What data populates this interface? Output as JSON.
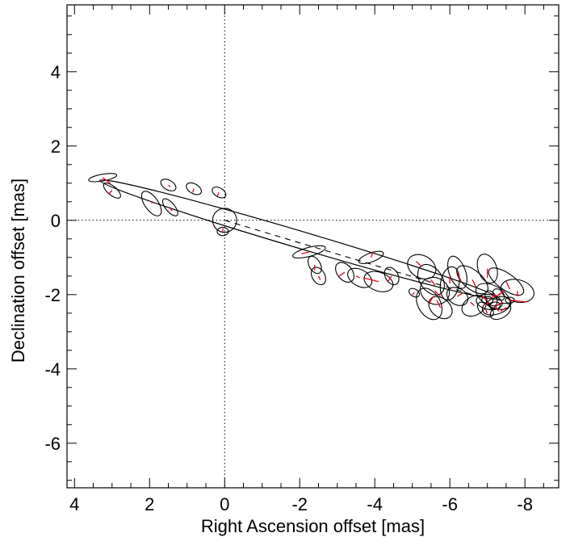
{
  "chart_data": {
    "type": "scatter",
    "title": "",
    "xlabel": "Right Ascension offset [mas]",
    "ylabel": "Declination offset [mas]",
    "xlim": [
      4.2,
      -8.9
    ],
    "ylim": [
      -7.2,
      5.8
    ],
    "x_reversed": true,
    "x_ticks": [
      4,
      2,
      0,
      -2,
      -4,
      -6,
      -8
    ],
    "x_tick_labels": [
      "4",
      "2",
      "0",
      "-2",
      "-4",
      "-6",
      "-8"
    ],
    "y_ticks": [
      4,
      2,
      0,
      -2,
      -4,
      -6
    ],
    "y_tick_labels": [
      "4",
      "2",
      "0",
      "-2",
      "-4",
      "-6"
    ],
    "grid": false,
    "origin_crosshair": "dotted",
    "colors": {
      "ellipse": "#000000",
      "residual": "#e8001c"
    },
    "orbit": {
      "center": [
        -2.0,
        -0.52
      ],
      "semi_major": 5.55,
      "semi_minor": 0.23,
      "angle_deg": -16.5
    },
    "line_of_nodes": {
      "from": [
        0.0,
        0.0
      ],
      "to": [
        -7.0,
        -2.12
      ],
      "style": "dashed"
    },
    "central_circle": {
      "x": 0.0,
      "y": 0.0,
      "r": 0.32
    },
    "measurements": [
      {
        "x": 3.25,
        "y": 1.15,
        "a": 0.38,
        "b": 0.09,
        "angle": 10,
        "rx": 3.05,
        "ry": 1.0
      },
      {
        "x": 3.0,
        "y": 0.8,
        "a": 0.28,
        "b": 0.12,
        "angle": -40,
        "rx": 3.1,
        "ry": 0.7
      },
      {
        "x": 1.95,
        "y": 0.45,
        "a": 0.38,
        "b": 0.18,
        "angle": -55,
        "rx": 1.9,
        "ry": 0.5
      },
      {
        "x": 1.5,
        "y": 0.95,
        "a": 0.22,
        "b": 0.13,
        "angle": -30,
        "rx": 1.45,
        "ry": 0.9
      },
      {
        "x": 1.45,
        "y": 0.35,
        "a": 0.28,
        "b": 0.12,
        "angle": -50,
        "rx": 1.4,
        "ry": 0.25
      },
      {
        "x": 0.82,
        "y": 0.85,
        "a": 0.22,
        "b": 0.13,
        "angle": -30,
        "rx": 0.85,
        "ry": 0.75
      },
      {
        "x": 0.15,
        "y": 0.75,
        "a": 0.2,
        "b": 0.12,
        "angle": -30,
        "rx": 0.2,
        "ry": 0.65
      },
      {
        "x": 0.05,
        "y": -0.3,
        "a": 0.15,
        "b": 0.11,
        "angle": 0,
        "rx": 0.05,
        "ry": -0.22
      },
      {
        "x": -2.25,
        "y": -0.85,
        "a": 0.45,
        "b": 0.12,
        "angle": 15,
        "rx": -2.05,
        "ry": -0.9
      },
      {
        "x": -2.4,
        "y": -1.2,
        "a": 0.25,
        "b": 0.15,
        "angle": -60,
        "rx": -2.4,
        "ry": -1.35
      },
      {
        "x": -2.5,
        "y": -1.5,
        "a": 0.25,
        "b": 0.17,
        "angle": -60,
        "rx": -2.55,
        "ry": -1.6
      },
      {
        "x": -3.2,
        "y": -1.4,
        "a": 0.3,
        "b": 0.2,
        "angle": -50,
        "rx": -3.05,
        "ry": -1.5
      },
      {
        "x": -3.6,
        "y": -1.55,
        "a": 0.35,
        "b": 0.22,
        "angle": -30,
        "rx": -3.5,
        "ry": -1.5
      },
      {
        "x": -3.9,
        "y": -1.0,
        "a": 0.35,
        "b": 0.12,
        "angle": 20,
        "rx": -3.95,
        "ry": -0.85
      },
      {
        "x": -4.1,
        "y": -1.65,
        "a": 0.4,
        "b": 0.25,
        "angle": -20,
        "rx": -3.7,
        "ry": -1.55
      },
      {
        "x": -4.45,
        "y": -1.5,
        "a": 0.25,
        "b": 0.17,
        "angle": -60,
        "rx": -4.35,
        "ry": -1.65
      },
      {
        "x": -5.25,
        "y": -1.25,
        "a": 0.4,
        "b": 0.3,
        "angle": -30,
        "rx": -5.1,
        "ry": -1.1
      },
      {
        "x": -5.05,
        "y": -1.95,
        "a": 0.15,
        "b": 0.1,
        "angle": -30,
        "rx": -5.0,
        "ry": -2.0
      },
      {
        "x": -5.5,
        "y": -1.6,
        "a": 0.45,
        "b": 0.3,
        "angle": -55,
        "rx": -5.6,
        "ry": -1.75
      },
      {
        "x": -5.6,
        "y": -1.9,
        "a": 0.4,
        "b": 0.35,
        "angle": -30,
        "rx": -5.75,
        "ry": -2.05
      },
      {
        "x": -5.75,
        "y": -2.35,
        "a": 0.35,
        "b": 0.25,
        "angle": -40,
        "rx": -5.65,
        "ry": -2.15
      },
      {
        "x": -5.45,
        "y": -2.25,
        "a": 0.45,
        "b": 0.3,
        "angle": -60,
        "rx": -5.55,
        "ry": -2.05
      },
      {
        "x": -6.0,
        "y": -1.7,
        "a": 0.45,
        "b": 0.25,
        "angle": 80,
        "rx": -6.0,
        "ry": -1.5
      },
      {
        "x": -6.2,
        "y": -1.4,
        "a": 0.45,
        "b": 0.22,
        "angle": -70,
        "rx": -6.3,
        "ry": -1.65
      },
      {
        "x": -6.2,
        "y": -2.05,
        "a": 0.3,
        "b": 0.22,
        "angle": -30,
        "rx": -6.35,
        "ry": -1.95
      },
      {
        "x": -6.6,
        "y": -1.6,
        "a": 0.5,
        "b": 0.25,
        "angle": -40,
        "rx": -6.7,
        "ry": -1.8
      },
      {
        "x": -6.65,
        "y": -2.3,
        "a": 0.35,
        "b": 0.25,
        "angle": 30,
        "rx": -6.55,
        "ry": -2.2
      },
      {
        "x": -7.0,
        "y": -1.3,
        "a": 0.4,
        "b": 0.25,
        "angle": -70,
        "rx": -7.0,
        "ry": -1.55
      },
      {
        "x": -7.5,
        "y": -1.65,
        "a": 0.55,
        "b": 0.22,
        "angle": -35,
        "rx": -7.6,
        "ry": -1.85
      },
      {
        "x": -7.8,
        "y": -1.9,
        "a": 0.45,
        "b": 0.3,
        "angle": -15,
        "rx": -7.8,
        "ry": -2.05
      },
      {
        "x": -7.15,
        "y": -2.05,
        "a": 0.5,
        "b": 0.28,
        "angle": -30,
        "rx": -7.35,
        "ry": -2.0
      },
      {
        "x": -7.05,
        "y": -2.2,
        "a": 0.35,
        "b": 0.2,
        "angle": -10,
        "rx": -6.95,
        "ry": -2.3
      },
      {
        "x": -7.25,
        "y": -2.3,
        "a": 0.4,
        "b": 0.22,
        "angle": 20,
        "rx": -7.4,
        "ry": -2.2
      },
      {
        "x": -6.95,
        "y": -2.4,
        "a": 0.25,
        "b": 0.15,
        "angle": -40,
        "rx": -7.0,
        "ry": -2.5
      },
      {
        "x": -7.35,
        "y": -2.45,
        "a": 0.3,
        "b": 0.18,
        "angle": 30,
        "rx": -7.5,
        "ry": -2.35
      },
      {
        "x": -7.1,
        "y": -2.1,
        "a": 0.22,
        "b": 0.14,
        "angle": -60,
        "rx": -7.2,
        "ry": -2.0
      },
      {
        "x": -7.0,
        "y": -2.15,
        "a": 0.15,
        "b": 0.1,
        "angle": 0,
        "rx": -6.85,
        "ry": -2.05
      },
      {
        "x": -7.3,
        "y": -2.0,
        "a": 0.18,
        "b": 0.12,
        "angle": -45,
        "rx": -7.45,
        "ry": -1.9
      },
      {
        "x": -7.6,
        "y": -2.15,
        "a": 0.12,
        "b": 0.08,
        "angle": 0,
        "rx": -8.05,
        "ry": -2.2
      },
      {
        "x": -7.2,
        "y": -2.3,
        "a": 0.14,
        "b": 0.1,
        "angle": 10,
        "rx": -7.3,
        "ry": -2.45
      }
    ]
  }
}
